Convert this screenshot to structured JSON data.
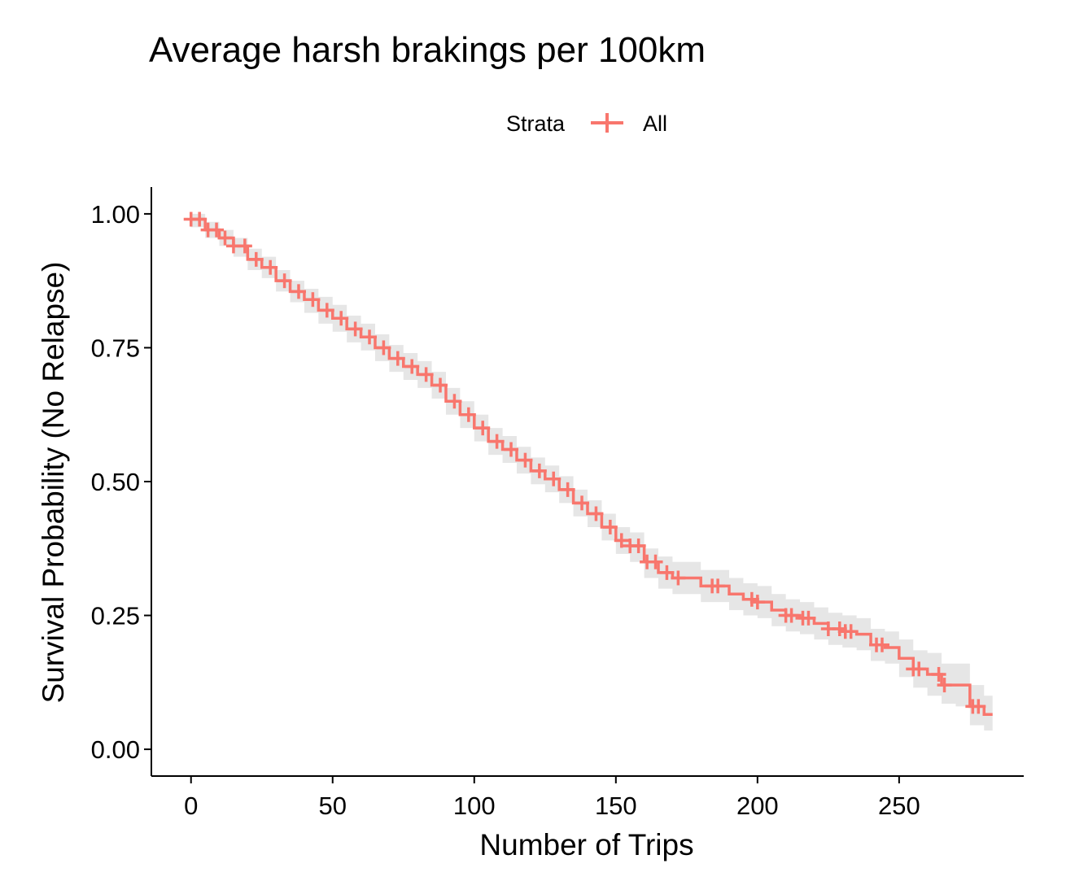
{
  "chart_data": {
    "type": "line",
    "title": "Average harsh brakings per 100km",
    "xlabel": "Number of Trips",
    "ylabel": "Survival Probability (No Relapse)",
    "xlim": [
      -14,
      294
    ],
    "ylim": [
      -0.05,
      1.05
    ],
    "x_ticks": [
      "0",
      "50",
      "100",
      "150",
      "200",
      "250"
    ],
    "x_tick_values": [
      0,
      50,
      100,
      150,
      200,
      250
    ],
    "y_ticks": [
      "0.00",
      "0.25",
      "0.50",
      "0.75",
      "1.00"
    ],
    "y_tick_values": [
      0,
      0.25,
      0.5,
      0.75,
      1.0
    ],
    "legend": {
      "title": "Strata",
      "entries": [
        "All"
      ],
      "position": "top"
    },
    "line_color": "#F8766D",
    "ci_color": "#E6E6E6",
    "series": [
      {
        "name": "All",
        "x": [
          0,
          5,
          10,
          15,
          20,
          25,
          30,
          35,
          40,
          45,
          50,
          55,
          60,
          65,
          70,
          75,
          80,
          85,
          90,
          95,
          100,
          105,
          110,
          115,
          120,
          125,
          130,
          135,
          140,
          145,
          150,
          155,
          160,
          165,
          170,
          175,
          180,
          185,
          190,
          195,
          200,
          205,
          210,
          215,
          220,
          225,
          230,
          235,
          240,
          245,
          250,
          255,
          260,
          265,
          270,
          275,
          280,
          283
        ],
        "y": [
          0.99,
          0.97,
          0.955,
          0.94,
          0.915,
          0.9,
          0.875,
          0.855,
          0.84,
          0.82,
          0.805,
          0.785,
          0.77,
          0.75,
          0.73,
          0.715,
          0.7,
          0.68,
          0.65,
          0.625,
          0.6,
          0.575,
          0.56,
          0.54,
          0.52,
          0.505,
          0.485,
          0.46,
          0.44,
          0.415,
          0.39,
          0.38,
          0.35,
          0.33,
          0.32,
          0.32,
          0.305,
          0.305,
          0.29,
          0.28,
          0.275,
          0.26,
          0.25,
          0.245,
          0.235,
          0.225,
          0.22,
          0.215,
          0.195,
          0.19,
          0.17,
          0.15,
          0.14,
          0.12,
          0.12,
          0.08,
          0.065,
          0.065
        ],
        "lower": [
          0.975,
          0.955,
          0.94,
          0.92,
          0.895,
          0.88,
          0.855,
          0.835,
          0.815,
          0.795,
          0.78,
          0.76,
          0.745,
          0.725,
          0.705,
          0.69,
          0.675,
          0.655,
          0.625,
          0.6,
          0.575,
          0.55,
          0.535,
          0.515,
          0.495,
          0.48,
          0.46,
          0.435,
          0.415,
          0.39,
          0.365,
          0.35,
          0.32,
          0.3,
          0.29,
          0.29,
          0.275,
          0.275,
          0.26,
          0.25,
          0.245,
          0.23,
          0.22,
          0.215,
          0.205,
          0.195,
          0.19,
          0.185,
          0.165,
          0.16,
          0.135,
          0.115,
          0.1,
          0.085,
          0.08,
          0.045,
          0.035,
          0.035
        ],
        "upper": [
          1.0,
          0.985,
          0.97,
          0.955,
          0.935,
          0.92,
          0.895,
          0.875,
          0.86,
          0.845,
          0.83,
          0.81,
          0.795,
          0.775,
          0.755,
          0.74,
          0.725,
          0.705,
          0.675,
          0.65,
          0.625,
          0.6,
          0.585,
          0.565,
          0.545,
          0.53,
          0.51,
          0.485,
          0.465,
          0.44,
          0.415,
          0.405,
          0.375,
          0.36,
          0.35,
          0.35,
          0.335,
          0.335,
          0.32,
          0.31,
          0.305,
          0.29,
          0.28,
          0.275,
          0.265,
          0.255,
          0.25,
          0.245,
          0.225,
          0.22,
          0.205,
          0.185,
          0.18,
          0.16,
          0.16,
          0.12,
          0.1,
          0.1
        ],
        "censor_x": [
          0,
          3,
          6,
          9,
          12,
          15,
          19,
          23,
          28,
          33,
          38,
          43,
          48,
          53,
          58,
          63,
          68,
          73,
          78,
          83,
          88,
          93,
          98,
          103,
          108,
          113,
          118,
          123,
          128,
          133,
          138,
          143,
          148,
          152,
          155,
          158,
          161,
          164,
          168,
          172,
          184,
          186,
          198,
          200,
          210,
          212,
          216,
          218,
          225,
          229,
          231,
          233,
          242,
          244,
          255,
          257,
          264,
          266,
          276,
          278
        ]
      }
    ]
  }
}
